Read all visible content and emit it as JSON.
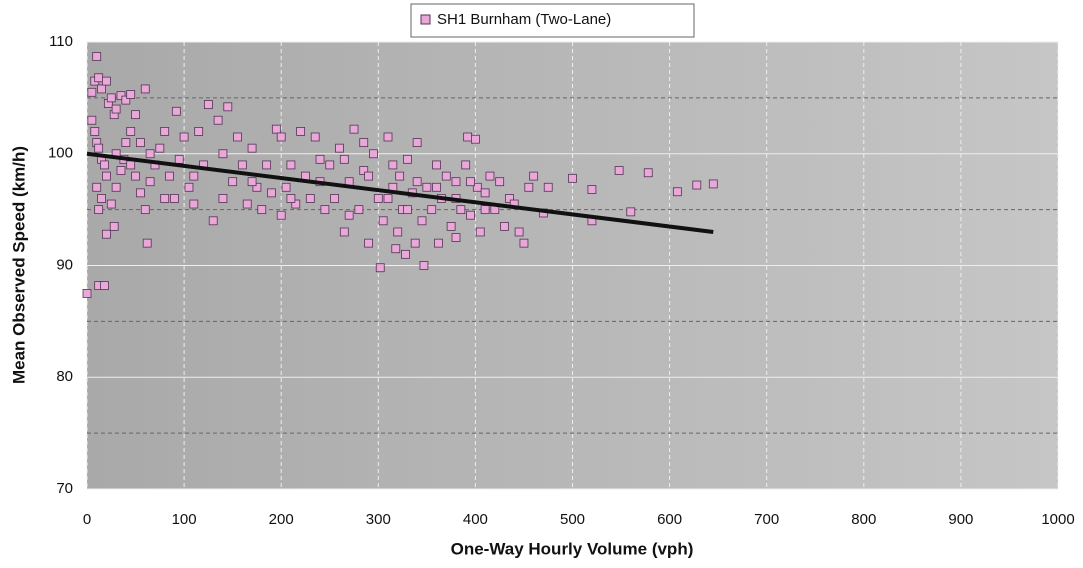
{
  "chart_data": {
    "type": "scatter",
    "xlabel": "One-Way Hourly Volume (vph)",
    "ylabel": "Mean Observed Speed (km/h)",
    "xlim": [
      0,
      1000
    ],
    "ylim": [
      70,
      110
    ],
    "xticks": [
      0,
      100,
      200,
      300,
      400,
      500,
      600,
      700,
      800,
      900,
      1000
    ],
    "yticks": [
      70,
      80,
      90,
      100,
      110
    ],
    "yminor": [
      75,
      85,
      95,
      105
    ],
    "grid": true,
    "legend": "top",
    "series": [
      {
        "name": "SH1 Burnham (Two-Lane)",
        "color": "#e8a8d8",
        "x": [
          0,
          12,
          18,
          10,
          5,
          8,
          12,
          15,
          20,
          22,
          25,
          28,
          30,
          35,
          40,
          45,
          60,
          5,
          8,
          10,
          12,
          15,
          18,
          20,
          10,
          12,
          15,
          25,
          28,
          20,
          30,
          35,
          38,
          40,
          45,
          50,
          55,
          50,
          55,
          60,
          62,
          65,
          70,
          75,
          80,
          85,
          90,
          92,
          95,
          100,
          105,
          110,
          115,
          120,
          125,
          130,
          135,
          140,
          145,
          150,
          155,
          160,
          165,
          170,
          175,
          180,
          185,
          190,
          195,
          200,
          200,
          205,
          210,
          215,
          220,
          225,
          230,
          235,
          240,
          245,
          250,
          255,
          260,
          265,
          270,
          275,
          280,
          285,
          290,
          295,
          300,
          302,
          305,
          310,
          315,
          318,
          320,
          322,
          325,
          328,
          330,
          335,
          338,
          340,
          345,
          347,
          350,
          355,
          360,
          362,
          365,
          370,
          375,
          380,
          385,
          390,
          392,
          395,
          400,
          402,
          405,
          410,
          415,
          420,
          425,
          430,
          435,
          440,
          445,
          450,
          455,
          460,
          470,
          475,
          500,
          520,
          520,
          548,
          560,
          578,
          608,
          628,
          645,
          30,
          45,
          65,
          80,
          110,
          140,
          170,
          210,
          240,
          270,
          290,
          330,
          360,
          380,
          410,
          265,
          285,
          310,
          340,
          315,
          380,
          395
        ],
        "values": [
          87.5,
          88.2,
          88.2,
          108.7,
          105.5,
          106.5,
          106.8,
          105.8,
          106.5,
          104.5,
          105,
          103.5,
          104,
          105.2,
          104.8,
          105.3,
          105.8,
          103,
          102,
          101,
          100.5,
          99.5,
          99,
          98,
          97,
          95,
          96,
          95.5,
          93.5,
          92.8,
          97,
          98.5,
          99.5,
          101,
          102,
          103.5,
          101,
          98,
          96.5,
          95,
          92,
          97.5,
          99,
          100.5,
          102,
          98,
          96,
          103.8,
          99.5,
          101.5,
          97,
          95.5,
          102,
          99,
          104.4,
          94,
          103,
          96,
          104.2,
          97.5,
          101.5,
          99,
          95.5,
          100.5,
          97,
          95,
          99,
          96.5,
          102.2,
          101.5,
          94.5,
          97,
          99,
          95.5,
          102,
          98,
          96,
          101.5,
          97.5,
          95,
          99,
          96,
          100.5,
          93,
          97.5,
          102.2,
          95,
          98.5,
          92,
          100,
          96,
          89.8,
          94,
          101.5,
          97,
          91.5,
          93,
          98,
          95,
          91,
          99.5,
          96.5,
          92,
          101,
          94,
          90,
          97,
          95,
          99,
          92,
          96,
          98,
          93.5,
          97.5,
          95,
          99,
          101.5,
          94.5,
          101.3,
          97,
          93,
          96.5,
          98,
          95,
          97.5,
          93.5,
          96,
          95.5,
          93,
          92,
          97,
          98,
          94.7,
          97,
          97.8,
          94,
          96.8,
          98.5,
          94.8,
          98.3,
          96.6,
          97.2,
          97.3,
          100,
          99,
          100,
          96,
          98,
          100,
          97.5,
          96,
          99.5,
          94.5,
          98,
          95,
          97,
          96,
          95,
          99.5,
          101,
          96,
          97.5,
          99,
          92.5,
          97.5
        ]
      }
    ],
    "trendline": {
      "color": "#111111",
      "x": [
        0,
        645
      ],
      "values": [
        100,
        93
      ]
    }
  }
}
